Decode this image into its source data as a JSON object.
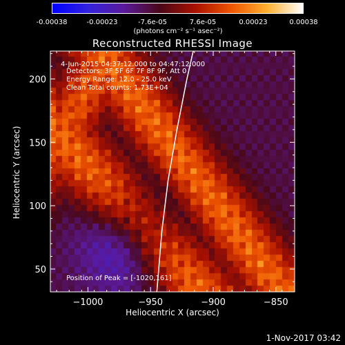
{
  "colorbar": {
    "ticks": [
      "-0.00038",
      "-0.00023",
      "-7.6e-05",
      "7.6e-05",
      "0.00023",
      "0.00038"
    ],
    "unit": "(photons cm⁻² s⁻¹ asec⁻²)",
    "stops": [
      "#0000ff",
      "#3322dd",
      "#5a1a9a",
      "#4a0818",
      "#aa1100",
      "#ee5500",
      "#ffb030",
      "#ffffff"
    ]
  },
  "annotations": {
    "time_range": "4-Jun-2015 04:37:12.000 to 04:47:12.000",
    "detectors": "Detectors: 3F 5F 6F 7F 8F 9F, Att 0",
    "energy": "Energy Range: 12.0 - 25.0 keV",
    "clean": "Clean      Total counts: 1.73E+04",
    "peak": "Position of Peak = [-1020,161]"
  },
  "timestamp": "1-Nov-2017 03:42",
  "chart_data": {
    "type": "heatmap",
    "title": "Reconstructed RHESSI Image",
    "xlabel": "Heliocentric X (arcsec)",
    "ylabel": "Heliocentric Y (arcsec)",
    "xlim": [
      -1030,
      -835
    ],
    "ylim": [
      32,
      222
    ],
    "xticks": [
      -1000,
      -950,
      -900,
      -850
    ],
    "yticks": [
      50,
      100,
      150,
      200
    ],
    "clim": [
      -0.00038,
      0.00038
    ],
    "peak": {
      "x": -1020,
      "y": 161
    },
    "limb": [
      [
        -945,
        32
      ],
      [
        -941,
        80
      ],
      [
        -936,
        120
      ],
      [
        -929,
        160
      ],
      [
        -921,
        200
      ],
      [
        -916,
        222
      ]
    ],
    "grid": {
      "nx": 40,
      "ny": 39
    }
  }
}
